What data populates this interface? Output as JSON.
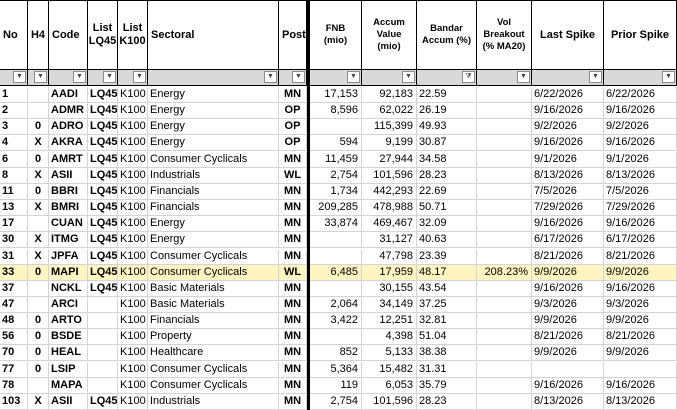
{
  "headers": {
    "no": "No",
    "h4": "H4",
    "code": "Code",
    "lq45": "List LQ45",
    "k100": "List K100",
    "sectoral": "Sectoral",
    "post": "Post",
    "fnb": "FNB (mio)",
    "accum": "Accum Value (mio)",
    "bandar": "Bandar Accum (%)",
    "vol": "Vol Breakout (% MA20)",
    "last_spike": "Last Spike",
    "prior_spike": "Prior Spike"
  },
  "filter_icon": "chevron-down-icon",
  "active_filter_icon": "filter-funnel-icon",
  "highlight_color": "#fff5c2",
  "rows": [
    {
      "no": "1",
      "h4": "",
      "code": "AADI",
      "lq45": "LQ45",
      "k100": "K100",
      "sector": "Energy",
      "post": "MN",
      "fnb": "17,153",
      "accum": "92,183",
      "bandar": "22.59",
      "vol": "",
      "last": "6/22/2026",
      "prior": "6/22/2026"
    },
    {
      "no": "2",
      "h4": "",
      "code": "ADMR",
      "lq45": "LQ45",
      "k100": "K100",
      "sector": "Energy",
      "post": "OP",
      "fnb": "8,596",
      "accum": "62,022",
      "bandar": "26.19",
      "vol": "",
      "last": "9/16/2026",
      "prior": "9/16/2026"
    },
    {
      "no": "3",
      "h4": "0",
      "code": "ADRO",
      "lq45": "LQ45",
      "k100": "K100",
      "sector": "Energy",
      "post": "OP",
      "fnb": "",
      "accum": "115,399",
      "bandar": "49.93",
      "vol": "",
      "last": "9/2/2026",
      "prior": "9/2/2026"
    },
    {
      "no": "4",
      "h4": "X",
      "code": "AKRA",
      "lq45": "LQ45",
      "k100": "K100",
      "sector": "Energy",
      "post": "OP",
      "fnb": "594",
      "accum": "9,199",
      "bandar": "30.87",
      "vol": "",
      "last": "9/16/2026",
      "prior": "9/16/2026"
    },
    {
      "no": "6",
      "h4": "0",
      "code": "AMRT",
      "lq45": "LQ45",
      "k100": "K100",
      "sector": "Consumer Cyclicals",
      "post": "MN",
      "fnb": "11,459",
      "accum": "27,944",
      "bandar": "34.58",
      "vol": "",
      "last": "9/1/2026",
      "prior": "9/1/2026"
    },
    {
      "no": "8",
      "h4": "X",
      "code": "ASII",
      "lq45": "LQ45",
      "k100": "K100",
      "sector": "Industrials",
      "post": "WL",
      "fnb": "2,754",
      "accum": "101,596",
      "bandar": "28.23",
      "vol": "",
      "last": "8/13/2026",
      "prior": "8/13/2026"
    },
    {
      "no": "11",
      "h4": "0",
      "code": "BBRI",
      "lq45": "LQ45",
      "k100": "K100",
      "sector": "Financials",
      "post": "MN",
      "fnb": "1,734",
      "accum": "442,293",
      "bandar": "22.69",
      "vol": "",
      "last": "7/5/2026",
      "prior": "7/5/2026"
    },
    {
      "no": "13",
      "h4": "X",
      "code": "BMRI",
      "lq45": "LQ45",
      "k100": "K100",
      "sector": "Financials",
      "post": "MN",
      "fnb": "209,285",
      "accum": "478,988",
      "bandar": "50.71",
      "vol": "",
      "last": "7/29/2026",
      "prior": "7/29/2026"
    },
    {
      "no": "17",
      "h4": "",
      "code": "CUAN",
      "lq45": "LQ45",
      "k100": "K100",
      "sector": "Energy",
      "post": "MN",
      "fnb": "33,874",
      "accum": "469,467",
      "bandar": "32.09",
      "vol": "",
      "last": "9/16/2026",
      "prior": "9/16/2026"
    },
    {
      "no": "30",
      "h4": "X",
      "code": "ITMG",
      "lq45": "LQ45",
      "k100": "K100",
      "sector": "Energy",
      "post": "MN",
      "fnb": "",
      "accum": "31,127",
      "bandar": "40.63",
      "vol": "",
      "last": "6/17/2026",
      "prior": "6/17/2026"
    },
    {
      "no": "31",
      "h4": "X",
      "code": "JPFA",
      "lq45": "LQ45",
      "k100": "K100",
      "sector": "Consumer Cyclicals",
      "post": "MN",
      "fnb": "",
      "accum": "47,798",
      "bandar": "23.39",
      "vol": "",
      "last": "8/21/2026",
      "prior": "8/21/2026"
    },
    {
      "no": "33",
      "h4": "0",
      "code": "MAPI",
      "lq45": "LQ45",
      "k100": "K100",
      "sector": "Consumer Cyclicals",
      "post": "WL",
      "fnb": "6,485",
      "accum": "17,959",
      "bandar": "48.17",
      "vol": "208.23%",
      "last": "9/9/2026",
      "prior": "9/9/2026",
      "highlight": true
    },
    {
      "no": "37",
      "h4": "",
      "code": "NCKL",
      "lq45": "LQ45",
      "k100": "K100",
      "sector": "Basic Materials",
      "post": "MN",
      "fnb": "",
      "accum": "30,155",
      "bandar": "43.54",
      "vol": "",
      "last": "9/16/2026",
      "prior": "9/16/2026"
    },
    {
      "no": "47",
      "h4": "",
      "code": "ARCI",
      "lq45": "",
      "k100": "K100",
      "sector": "Basic Materials",
      "post": "MN",
      "fnb": "2,064",
      "accum": "34,149",
      "bandar": "37.25",
      "vol": "",
      "last": "9/3/2026",
      "prior": "9/3/2026"
    },
    {
      "no": "48",
      "h4": "0",
      "code": "ARTO",
      "lq45": "",
      "k100": "K100",
      "sector": "Financials",
      "post": "MN",
      "fnb": "3,422",
      "accum": "12,251",
      "bandar": "32.81",
      "vol": "",
      "last": "9/9/2026",
      "prior": "9/9/2026"
    },
    {
      "no": "56",
      "h4": "0",
      "code": "BSDE",
      "lq45": "",
      "k100": "K100",
      "sector": "Property",
      "post": "MN",
      "fnb": "",
      "accum": "4,398",
      "bandar": "51.04",
      "vol": "",
      "last": "8/21/2026",
      "prior": "8/21/2026"
    },
    {
      "no": "70",
      "h4": "0",
      "code": "HEAL",
      "lq45": "",
      "k100": "K100",
      "sector": "Healthcare",
      "post": "MN",
      "fnb": "852",
      "accum": "5,133",
      "bandar": "38.38",
      "vol": "",
      "last": "9/9/2026",
      "prior": "9/9/2026"
    },
    {
      "no": "77",
      "h4": "0",
      "code": "LSIP",
      "lq45": "",
      "k100": "K100",
      "sector": "Consumer Cyclicals",
      "post": "MN",
      "fnb": "5,364",
      "accum": "15,482",
      "bandar": "31.31",
      "vol": "",
      "last": "",
      "prior": ""
    },
    {
      "no": "78",
      "h4": "",
      "code": "MAPA",
      "lq45": "",
      "k100": "K100",
      "sector": "Consumer Cyclicals",
      "post": "MN",
      "fnb": "119",
      "accum": "6,053",
      "bandar": "35.79",
      "vol": "",
      "last": "9/16/2026",
      "prior": "9/16/2026"
    },
    {
      "no": "103",
      "h4": "X",
      "code": "ASII",
      "lq45": "LQ45",
      "k100": "K100",
      "sector": "Industrials",
      "post": "MN",
      "fnb": "2,754",
      "accum": "101,596",
      "bandar": "28.23",
      "vol": "",
      "last": "8/13/2026",
      "prior": "8/13/2026"
    }
  ]
}
